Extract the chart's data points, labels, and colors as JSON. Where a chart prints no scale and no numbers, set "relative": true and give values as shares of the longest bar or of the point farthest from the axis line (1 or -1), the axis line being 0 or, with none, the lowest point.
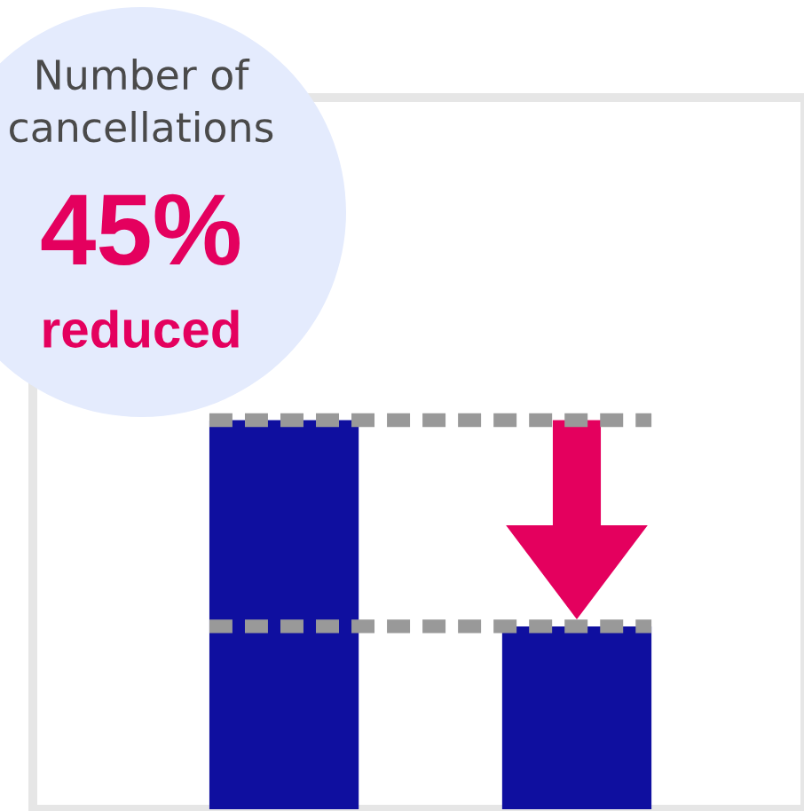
{
  "chart_data": {
    "type": "bar",
    "relative": true,
    "title": "Number of\ncancellations",
    "annotations": [
      "45%",
      "reduced"
    ],
    "categories": [
      null,
      null
    ],
    "values": [
      1,
      0.47
    ],
    "color": "#0f0f9f",
    "ref_lines": [
      {
        "axis": "y",
        "value": 1,
        "color": "#999999",
        "line_style": "dashed"
      },
      {
        "axis": "y",
        "value": 0.47,
        "color": "#999999",
        "line_style": "dashed"
      }
    ]
  }
}
